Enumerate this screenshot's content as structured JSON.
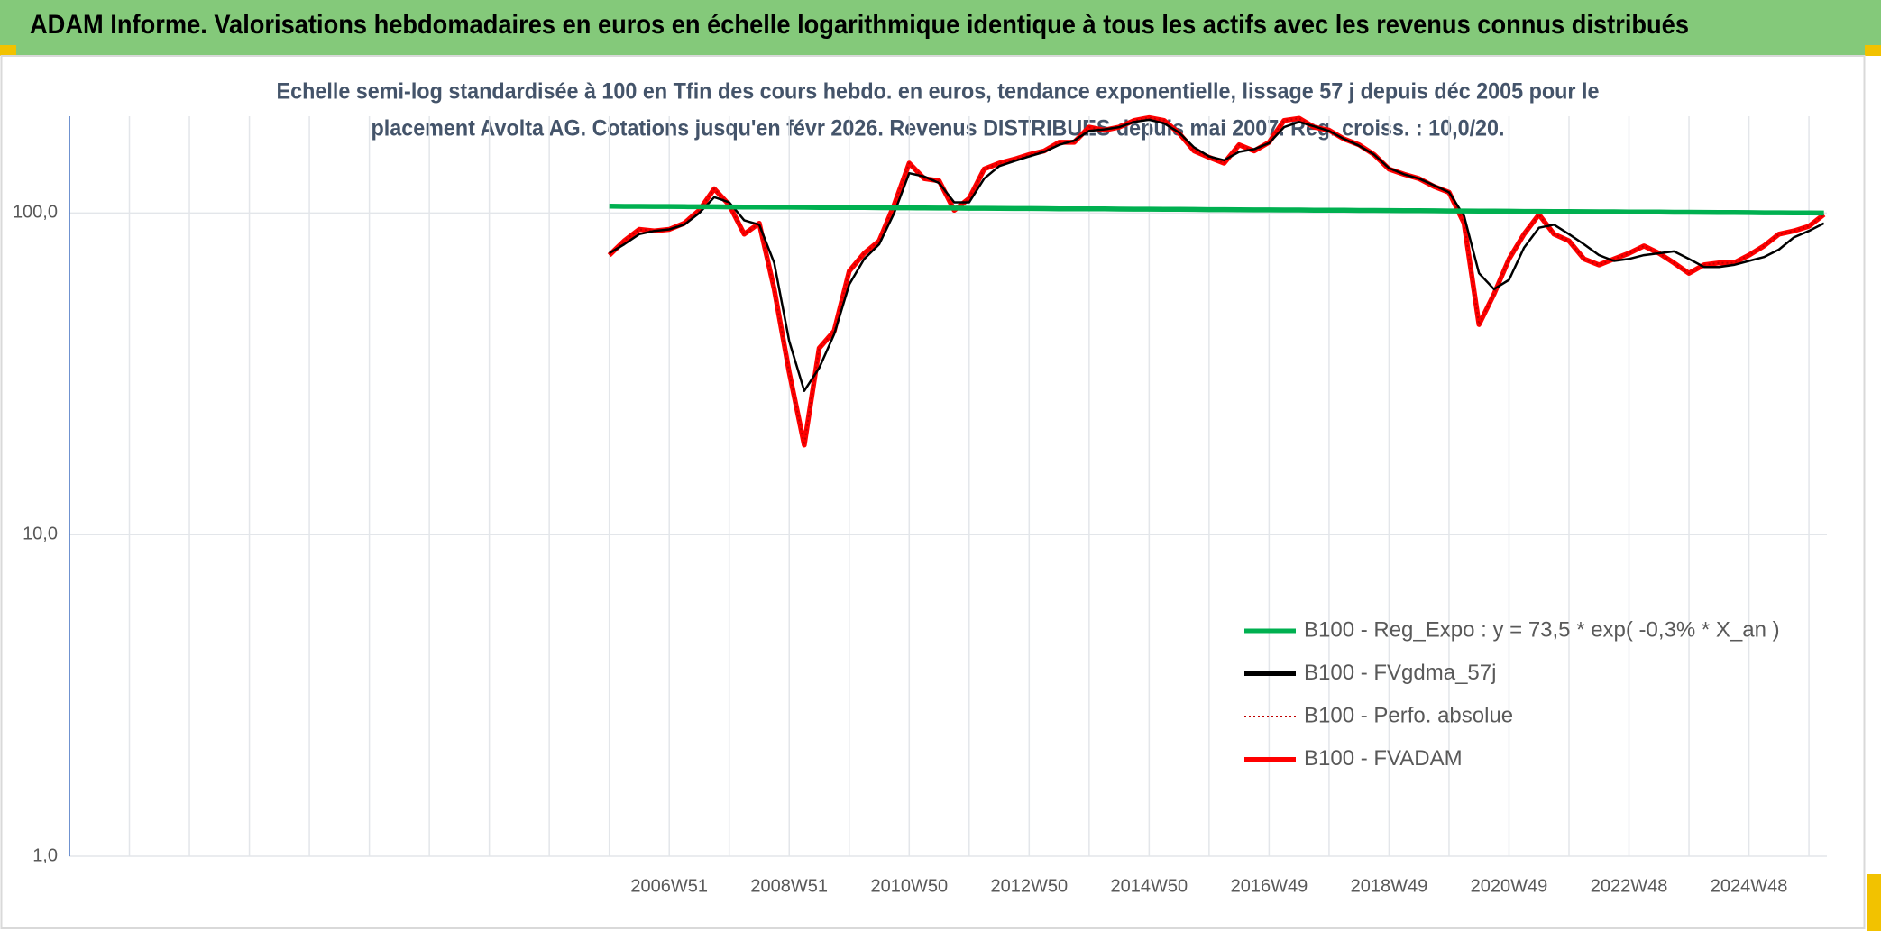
{
  "chart_data": {
    "type": "line",
    "title": "ADAM Informe. Valorisations hebdomadaires en euros en échelle logarithmique identique à tous les actifs avec les revenus connus distribués",
    "subtitle": [
      "Echelle semi-log standardisée à 100 en Tfin des cours hebdo. en euros, tendance exponentielle, lissage 57 j depuis déc 2005 pour le",
      "placement Avolta AG. Cotations jusqu'en févr 2026. Revenus DISTRIBUES depuis mai 2007. Reg. croiss. : 10,0/20."
    ],
    "log_scale": true,
    "grid": true,
    "legend": "lower right",
    "ylim": [
      1,
      200
    ],
    "yticks": [
      {
        "value": 1,
        "label": "1,0"
      },
      {
        "value": 10,
        "label": "10,0"
      },
      {
        "value": 100,
        "label": "100,0"
      }
    ],
    "categories": [
      null,
      null,
      null,
      null,
      null,
      null,
      null,
      null,
      null,
      null,
      null,
      null,
      null,
      null,
      null,
      null,
      null,
      null,
      null,
      null,
      null,
      null,
      null,
      null,
      null,
      null,
      null,
      null,
      null,
      null,
      null,
      null,
      null,
      null,
      null,
      null,
      null,
      null,
      null,
      null,
      "2006W51",
      null,
      null,
      null,
      null,
      null,
      null,
      null,
      "2008W51",
      null,
      null,
      null,
      null,
      null,
      null,
      null,
      "2010W50",
      null,
      null,
      null,
      null,
      null,
      null,
      null,
      "2012W50",
      null,
      null,
      null,
      null,
      null,
      null,
      null,
      "2014W50",
      null,
      null,
      null,
      null,
      null,
      null,
      null,
      "2016W49",
      null,
      null,
      null,
      null,
      null,
      null,
      null,
      "2018W49",
      null,
      null,
      null,
      null,
      null,
      null,
      null,
      "2020W49",
      null,
      null,
      null,
      null,
      null,
      null,
      null,
      "2022W48",
      null,
      null,
      null,
      null,
      null,
      null,
      null,
      "2024W48",
      null,
      null,
      null,
      null,
      null
    ],
    "series": [
      {
        "name": "B100 - Reg_Expo : y = 73,5 * exp( -0,3% *  X_an )",
        "color": "#00b050",
        "values": [
          null,
          null,
          null,
          null,
          null,
          null,
          null,
          null,
          null,
          null,
          null,
          null,
          null,
          null,
          null,
          null,
          null,
          null,
          null,
          null,
          null,
          null,
          null,
          null,
          null,
          null,
          null,
          null,
          null,
          null,
          null,
          null,
          null,
          null,
          null,
          null,
          105.0,
          104.9,
          104.9,
          104.8,
          104.8,
          104.7,
          104.6,
          104.6,
          104.5,
          104.4,
          104.4,
          104.3,
          104.3,
          104.2,
          104.1,
          104.1,
          104.0,
          104.0,
          103.9,
          103.8,
          103.8,
          103.7,
          103.6,
          103.6,
          103.5,
          103.5,
          103.4,
          103.3,
          103.3,
          103.2,
          103.1,
          103.1,
          103.0,
          103.0,
          102.9,
          102.8,
          102.8,
          102.7,
          102.7,
          102.6,
          102.5,
          102.5,
          102.4,
          102.3,
          102.3,
          102.2,
          102.2,
          102.1,
          102.0,
          102.0,
          101.9,
          101.9,
          101.8,
          101.7,
          101.7,
          101.6,
          101.5,
          101.5,
          101.4,
          101.4,
          101.3,
          101.2,
          101.2,
          101.1,
          101.1,
          101.0,
          100.9,
          100.9,
          100.8,
          100.7,
          100.7,
          100.6,
          100.6,
          100.5,
          100.4,
          100.4,
          100.3,
          100.2,
          100.2,
          100.1,
          100.1,
          100.0
        ]
      },
      {
        "name": "B100 - FVgdma_57j",
        "color": "#000000",
        "values": [
          null,
          null,
          null,
          null,
          null,
          null,
          null,
          null,
          null,
          null,
          null,
          null,
          null,
          null,
          null,
          null,
          null,
          null,
          null,
          null,
          null,
          null,
          null,
          null,
          null,
          null,
          null,
          null,
          null,
          null,
          null,
          null,
          null,
          null,
          null,
          null,
          75,
          80,
          86,
          88,
          89,
          92,
          100,
          112,
          108,
          95,
          92,
          70,
          40,
          28,
          33,
          42,
          60,
          72,
          80,
          100,
          133,
          130,
          124,
          108,
          108,
          128,
          140,
          145,
          150,
          155,
          163,
          168,
          180,
          182,
          185,
          192,
          195,
          190,
          178,
          160,
          150,
          146,
          155,
          158,
          165,
          185,
          192,
          186,
          180,
          170,
          162,
          152,
          138,
          132,
          128,
          122,
          116,
          98,
          65,
          58,
          62,
          78,
          90,
          92,
          86,
          80,
          74,
          71,
          72,
          74,
          75,
          76,
          72,
          68,
          68,
          69,
          71,
          73,
          77,
          84,
          88,
          93
        ]
      },
      {
        "name": "B100 - Perfo. absolue",
        "color": "#c00000",
        "linestyle": "dotted",
        "values": [
          null,
          null,
          null,
          null,
          null,
          null,
          null,
          null,
          null,
          null,
          null,
          null,
          null,
          null,
          null,
          null,
          null,
          null,
          null,
          null,
          null,
          null,
          null,
          null,
          null,
          null,
          null,
          null,
          null,
          null,
          null,
          null,
          null,
          null,
          null,
          null,
          74,
          82,
          89,
          88,
          89,
          93,
          102,
          119,
          106,
          86,
          93,
          58,
          32,
          19,
          38,
          43,
          66,
          75,
          82,
          106,
          143,
          128,
          126,
          102,
          111,
          137,
          143,
          147,
          152,
          156,
          166,
          166,
          185,
          181,
          185,
          194,
          198,
          194,
          177,
          156,
          149,
          143,
          163,
          156,
          166,
          194,
          197,
          185,
          181,
          170,
          163,
          152,
          137,
          132,
          128,
          121,
          116,
          93,
          45,
          56,
          72,
          86,
          99,
          86,
          82,
          72,
          69,
          72,
          75,
          79,
          75,
          70,
          65,
          69,
          70,
          70,
          74,
          79,
          86,
          88,
          91,
          99
        ]
      },
      {
        "name": "B100 - FVADAM",
        "color": "#ff0000",
        "values": [
          null,
          null,
          null,
          null,
          null,
          null,
          null,
          null,
          null,
          null,
          null,
          null,
          null,
          null,
          null,
          null,
          null,
          null,
          null,
          null,
          null,
          null,
          null,
          null,
          null,
          null,
          null,
          null,
          null,
          null,
          null,
          null,
          null,
          null,
          null,
          null,
          74,
          82,
          89,
          88,
          89,
          93,
          102,
          119,
          106,
          86,
          93,
          58,
          32,
          19,
          38,
          43,
          66,
          75,
          82,
          106,
          143,
          128,
          126,
          102,
          111,
          137,
          143,
          147,
          152,
          156,
          166,
          166,
          185,
          181,
          185,
          194,
          198,
          194,
          177,
          156,
          149,
          143,
          163,
          156,
          166,
          194,
          197,
          185,
          181,
          170,
          163,
          152,
          137,
          132,
          128,
          121,
          116,
          93,
          45,
          56,
          72,
          86,
          99,
          86,
          82,
          72,
          69,
          72,
          75,
          79,
          75,
          70,
          65,
          69,
          70,
          70,
          74,
          79,
          86,
          88,
          91,
          99
        ]
      }
    ]
  }
}
